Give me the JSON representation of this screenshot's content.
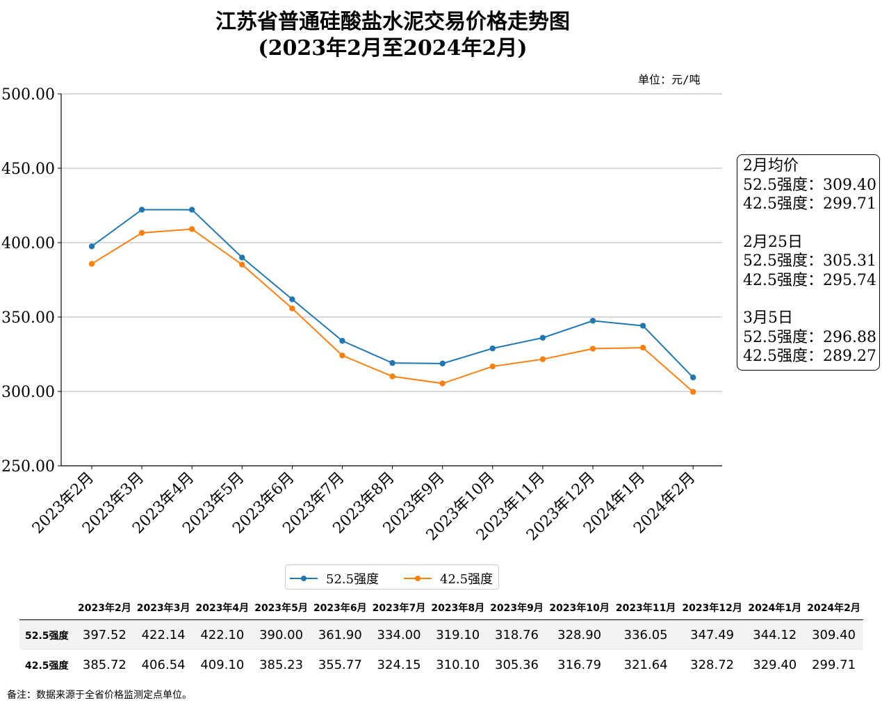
{
  "title_line1": "江苏省普通硅酸盐水泥交易价格走势图",
  "title_line2": "(2023年2月至2024年2月)",
  "unit_label": "单位：元/吨",
  "chart_data": {
    "type": "line",
    "categories": [
      "2023年2月",
      "2023年3月",
      "2023年4月",
      "2023年5月",
      "2023年6月",
      "2023年7月",
      "2023年8月",
      "2023年9月",
      "2023年10月",
      "2023年11月",
      "2023年12月",
      "2024年1月",
      "2024年2月"
    ],
    "series": [
      {
        "name": "52.5强度",
        "color": "#1f77b4",
        "values": [
          397.52,
          422.14,
          422.1,
          390.0,
          361.9,
          334.0,
          319.1,
          318.76,
          328.9,
          336.05,
          347.49,
          344.12,
          309.4
        ]
      },
      {
        "name": "42.5强度",
        "color": "#ff7f0e",
        "values": [
          385.72,
          406.54,
          409.1,
          385.23,
          355.77,
          324.15,
          310.1,
          305.36,
          316.79,
          321.64,
          328.72,
          329.4,
          299.71
        ]
      }
    ],
    "ylim": [
      250,
      500
    ],
    "yticks": [
      "250.00",
      "300.00",
      "350.00",
      "400.00",
      "450.00",
      "500.00"
    ],
    "grid": "horizontal",
    "legend": "bottom-center"
  },
  "side_box": [
    [
      "2月均价",
      "52.5强度：309.40",
      "42.5强度：299.71"
    ],
    [
      "2月25日",
      "52.5强度：305.31",
      "42.5强度：295.74"
    ],
    [
      "3月5日",
      "52.5强度：296.88",
      "42.5强度：289.27"
    ]
  ],
  "table": {
    "headers": [
      "2023年2月",
      "2023年3月",
      "2023年4月",
      "2023年5月",
      "2023年6月",
      "2023年7月",
      "2023年8月",
      "2023年9月",
      "2023年10月",
      "2023年11月",
      "2023年12月",
      "2024年1月",
      "2024年2月"
    ],
    "rows": [
      {
        "label": "52.5强度",
        "cells": [
          "397.52",
          "422.14",
          "422.10",
          "390.00",
          "361.90",
          "334.00",
          "319.10",
          "318.76",
          "328.90",
          "336.05",
          "347.49",
          "344.12",
          "309.40"
        ]
      },
      {
        "label": "42.5强度",
        "cells": [
          "385.72",
          "406.54",
          "409.10",
          "385.23",
          "355.77",
          "324.15",
          "310.10",
          "305.36",
          "316.79",
          "321.64",
          "328.72",
          "329.40",
          "299.71"
        ]
      }
    ]
  },
  "note": "备注：数据来源于全省价格监测定点单位。"
}
